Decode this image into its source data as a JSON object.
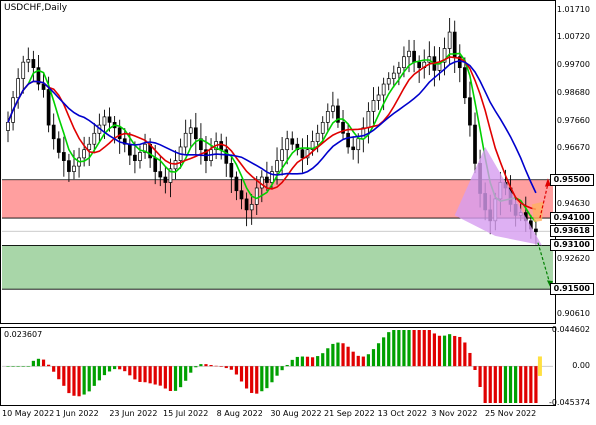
{
  "window": {
    "title": "USDCHF,Daily"
  },
  "indicator": {
    "label": "0.023607"
  },
  "price_axis": {
    "labels": [
      "1.01710",
      "1.00720",
      "0.99700",
      "0.98680",
      "0.97660",
      "0.96670",
      "0.95500",
      "0.94630",
      "0.94100",
      "0.93618",
      "0.93100",
      "0.92620",
      "0.91500",
      "0.90610"
    ],
    "highlighted": [
      "0.95500",
      "0.94100",
      "0.93618",
      "0.93100",
      "0.91500"
    ]
  },
  "ind_axis": {
    "labels": [
      "0.044602",
      "0.00",
      "-0.045374"
    ]
  },
  "time_axis": {
    "labels": [
      "10 May 2022",
      "1 Jun 2022",
      "23 Jun 2022",
      "15 Jul 2022",
      "8 Aug 2022",
      "30 Aug 2022",
      "21 Sep 2022",
      "13 Oct 2022",
      "3 Nov 2022",
      "25 Nov 2022"
    ]
  },
  "chart_data": {
    "type": "candlestick",
    "symbol": "USDCHF",
    "timeframe": "Daily",
    "ylim": [
      0.903,
      1.02
    ],
    "levels": {
      "resistance_zone": [
        0.941,
        0.955
      ],
      "support_zone": [
        0.915,
        0.931
      ],
      "current_price": 0.93618
    },
    "close_series": [
      0.976,
      0.985,
      0.992,
      0.998,
      0.999,
      0.996,
      0.99,
      0.988,
      0.975,
      0.97,
      0.965,
      0.962,
      0.958,
      0.96,
      0.963,
      0.966,
      0.968,
      0.972,
      0.975,
      0.978,
      0.976,
      0.974,
      0.97,
      0.968,
      0.964,
      0.962,
      0.965,
      0.968,
      0.963,
      0.958,
      0.956,
      0.954,
      0.959,
      0.962,
      0.967,
      0.972,
      0.974,
      0.97,
      0.966,
      0.962,
      0.966,
      0.969,
      0.966,
      0.961,
      0.956,
      0.951,
      0.948,
      0.944,
      0.946,
      0.952,
      0.956,
      0.954,
      0.958,
      0.962,
      0.966,
      0.97,
      0.968,
      0.966,
      0.963,
      0.966,
      0.969,
      0.972,
      0.976,
      0.98,
      0.982,
      0.976,
      0.972,
      0.967,
      0.966,
      0.97,
      0.974,
      0.98,
      0.984,
      0.986,
      0.99,
      0.992,
      0.994,
      0.996,
      1.0,
      1.002,
      0.998,
      0.996,
      0.998,
      1.0,
      0.995,
      0.998,
      1.003,
      1.009,
      1.0,
      0.996,
      0.985,
      0.975,
      0.961,
      0.95,
      0.944,
      0.94,
      0.948,
      0.954,
      0.952,
      0.946,
      0.942,
      0.943,
      0.94,
      0.937,
      0.936
    ],
    "ma_periods_colors": {
      "fast": "#00d000",
      "mid": "#e00000",
      "slow": "#0000cc"
    },
    "ao_histogram_range": [
      -0.045374,
      0.044602
    ],
    "projection": {
      "target": 0.915,
      "style": "dashed-green"
    }
  },
  "colors": {
    "resistance": "#ff9f9f",
    "support": "#a8d6a8",
    "triangle": "#d69cf0",
    "ma_fast": "#00d000",
    "ma_mid": "#e00000",
    "ma_slow": "#0000cc",
    "ao_up": "#00a000",
    "ao_down": "#e00000"
  }
}
